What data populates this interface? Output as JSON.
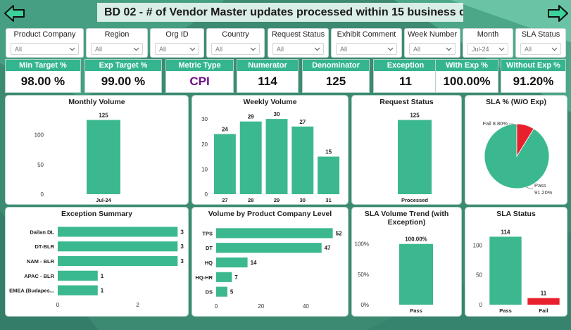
{
  "header": {
    "title": "BD 02 - # of Vendor Master updates processed within 15 business days",
    "back_icon": "back-arrow-icon",
    "forward_icon": "forward-arrow-icon"
  },
  "filters": [
    {
      "label": "Product Company",
      "value": "All"
    },
    {
      "label": "Region",
      "value": "All"
    },
    {
      "label": "Org ID",
      "value": "All"
    },
    {
      "label": "Country",
      "value": "All"
    },
    {
      "label": "Request Status",
      "value": "All"
    },
    {
      "label": "Exhibit Comment",
      "value": "All"
    },
    {
      "label": "Week Number",
      "value": "All"
    },
    {
      "label": "Month",
      "value": "Jul-24"
    },
    {
      "label": "SLA Status",
      "value": "All"
    }
  ],
  "kpis": [
    {
      "label": "Min Target %",
      "value": "98.00 %"
    },
    {
      "label": "Exp Target %",
      "value": "99.00 %"
    },
    {
      "label": "Metric Type",
      "value": "CPI"
    },
    {
      "label": "Numerator",
      "value": "114"
    },
    {
      "label": "Denominator",
      "value": "125"
    },
    {
      "label": "Exception",
      "value": "11"
    },
    {
      "label": "With Exp %",
      "value": "100.00%"
    },
    {
      "label": "Without Exp %",
      "value": "91.20%"
    }
  ],
  "colors": {
    "teal": "#3bb88f",
    "red": "#e8202e",
    "header_green": "#35b58f",
    "purple": "#6b0f87"
  },
  "chart_data": [
    {
      "id": "monthly",
      "type": "bar",
      "title": "Monthly Volume",
      "categories": [
        "Jul-24"
      ],
      "values": [
        125
      ],
      "data_labels": [
        "125"
      ],
      "yticks": [
        0,
        50,
        100
      ],
      "ylim": [
        0,
        135
      ]
    },
    {
      "id": "weekly",
      "type": "bar",
      "title": "Weekly Volume",
      "categories": [
        "27",
        "28",
        "29",
        "30",
        "31"
      ],
      "values": [
        24,
        29,
        30,
        27,
        15
      ],
      "data_labels": [
        "24",
        "29",
        "30",
        "27",
        "15"
      ],
      "yticks": [
        0,
        10,
        20,
        30
      ],
      "ylim": [
        0,
        32
      ]
    },
    {
      "id": "request",
      "type": "bar",
      "title": "Request Status",
      "categories": [
        "Processed"
      ],
      "values": [
        125
      ],
      "data_labels": [
        "125"
      ],
      "yticks": [],
      "ylim": [
        0,
        135
      ]
    },
    {
      "id": "sla_pie",
      "type": "pie",
      "title": "SLA % (W/O Exp)",
      "slices": [
        {
          "label": "Pass",
          "value": 91.2,
          "label_text": "Pass",
          "value_text": "91.20%",
          "color": "#3bb88f"
        },
        {
          "label": "Fail",
          "value": 8.8,
          "label_text": "Fail 8.80%",
          "color": "#e8202e"
        }
      ]
    },
    {
      "id": "exception",
      "type": "bar",
      "orientation": "horizontal",
      "title": "Exception Summary",
      "categories": [
        "Dailan DL",
        "DT-BLR",
        "NAM - BLR",
        "APAC - BLR",
        "EMEA (Budapes..."
      ],
      "values": [
        3,
        3,
        3,
        1,
        1
      ],
      "data_labels": [
        "3",
        "3",
        "3",
        "1",
        "1"
      ],
      "xticks": [
        0,
        2
      ],
      "xlim": [
        0,
        3.1
      ]
    },
    {
      "id": "product",
      "type": "bar",
      "orientation": "horizontal",
      "title": "Volume by Product Company Level",
      "categories": [
        "TPS",
        "DT",
        "HQ",
        "HQ-HR",
        "DS"
      ],
      "values": [
        52,
        47,
        14,
        7,
        5
      ],
      "data_labels": [
        "52",
        "47",
        "14",
        "7",
        "5"
      ],
      "xticks": [
        0,
        20,
        40
      ],
      "xlim": [
        0,
        54
      ]
    },
    {
      "id": "trend",
      "type": "bar",
      "title": "SLA Volume Trend (with Exception)",
      "categories": [
        "Pass"
      ],
      "values": [
        100
      ],
      "data_labels": [
        "100.00%"
      ],
      "yticks": [
        0,
        50,
        100
      ],
      "ytick_labels": [
        "0%",
        "50%",
        "100%"
      ],
      "ylim": [
        0,
        102
      ]
    },
    {
      "id": "sla_status",
      "type": "bar",
      "title": "SLA Status",
      "categories": [
        "Pass",
        "Fail"
      ],
      "values": [
        114,
        11
      ],
      "data_labels": [
        "114",
        "11"
      ],
      "bar_colors": [
        "#3bb88f",
        "#e8202e"
      ],
      "yticks": [
        0,
        50,
        100
      ],
      "ylim": [
        0,
        118
      ]
    }
  ]
}
